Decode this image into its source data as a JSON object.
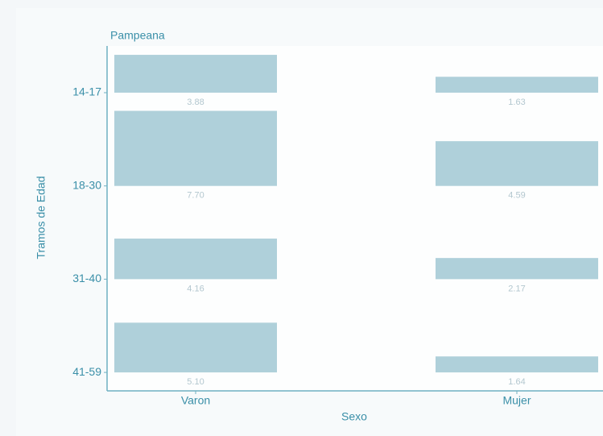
{
  "chart_data": {
    "type": "bar",
    "facet": "Pampeana",
    "xlabel": "Sexo",
    "ylabel": "Tramos de Edad",
    "categories": [
      "14-17",
      "18-30",
      "31-40",
      "41-59"
    ],
    "color": "#afd0da",
    "series": [
      {
        "name": "Varon",
        "values": [
          3.88,
          7.7,
          4.16,
          5.1
        ],
        "value_labels": [
          "3.88",
          "7.70",
          "4.16",
          "5.10"
        ]
      },
      {
        "name": "Mujer",
        "values": [
          1.63,
          4.59,
          2.17,
          1.64
        ],
        "value_labels": [
          "1.63",
          "4.59",
          "2.17",
          "1.64"
        ]
      }
    ]
  }
}
